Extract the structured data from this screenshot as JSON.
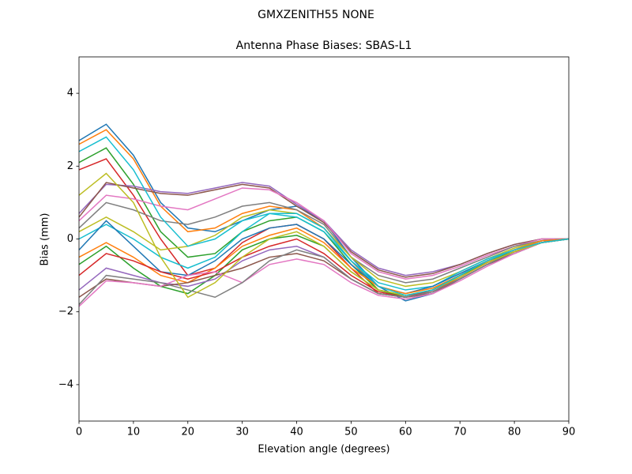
{
  "chart_data": {
    "type": "line",
    "suptitle": "GMXZENITH55     NONE",
    "title": "Antenna Phase Biases: SBAS-L1",
    "xlabel": "Elevation angle (degrees)",
    "ylabel": "Bias (mm)",
    "xlim": [
      0,
      90
    ],
    "ylim": [
      -5,
      5
    ],
    "xticks": [
      0,
      10,
      20,
      30,
      40,
      50,
      60,
      70,
      80,
      90
    ],
    "yticks": [
      {
        "value": -4,
        "label": "−4"
      },
      {
        "value": -2,
        "label": "−2"
      },
      0,
      2,
      4
    ],
    "x": [
      0,
      5,
      10,
      15,
      20,
      25,
      30,
      35,
      40,
      45,
      50,
      55,
      60,
      65,
      70,
      75,
      80,
      85,
      90
    ],
    "series": [
      {
        "color": "#1f77b4",
        "values": [
          2.7,
          3.15,
          2.3,
          1.0,
          0.3,
          0.2,
          0.5,
          0.8,
          0.9,
          0.5,
          -0.5,
          -1.3,
          -1.7,
          -1.5,
          -1.1,
          -0.7,
          -0.4,
          -0.1,
          0
        ]
      },
      {
        "color": "#ff7f0e",
        "values": [
          2.6,
          3.0,
          2.2,
          0.9,
          0.2,
          0.3,
          0.7,
          0.9,
          0.8,
          0.3,
          -0.6,
          -1.4,
          -1.6,
          -1.4,
          -1.0,
          -0.65,
          -0.35,
          -0.1,
          0
        ]
      },
      {
        "color": "#2ca02c",
        "values": [
          2.1,
          2.5,
          1.5,
          0.2,
          -0.5,
          -0.4,
          0.2,
          0.5,
          0.6,
          0.2,
          -0.7,
          -1.4,
          -1.6,
          -1.4,
          -1.0,
          -0.6,
          -0.35,
          -0.1,
          0
        ]
      },
      {
        "color": "#d62728",
        "values": [
          1.9,
          2.2,
          1.2,
          0.0,
          -1.0,
          -0.8,
          -0.1,
          0.3,
          0.4,
          0.0,
          -0.8,
          -1.5,
          -1.6,
          -1.4,
          -1.0,
          -0.6,
          -0.3,
          -0.05,
          0
        ]
      },
      {
        "color": "#9467bd",
        "values": [
          0.7,
          1.5,
          1.45,
          1.3,
          1.25,
          1.4,
          1.55,
          1.45,
          0.95,
          0.5,
          -0.3,
          -0.8,
          -1.0,
          -0.9,
          -0.7,
          -0.4,
          -0.15,
          0,
          0
        ]
      },
      {
        "color": "#8c564b",
        "values": [
          0.6,
          1.55,
          1.4,
          1.25,
          1.2,
          1.35,
          1.5,
          1.4,
          0.9,
          0.45,
          -0.35,
          -0.85,
          -1.05,
          -0.95,
          -0.7,
          -0.4,
          -0.15,
          0,
          0
        ]
      },
      {
        "color": "#e377c2",
        "values": [
          0.5,
          1.2,
          1.1,
          0.9,
          0.8,
          1.1,
          1.4,
          1.35,
          1.0,
          0.5,
          -0.4,
          -0.9,
          -1.1,
          -1.0,
          -0.75,
          -0.45,
          -0.2,
          0,
          0
        ]
      },
      {
        "color": "#7f7f7f",
        "values": [
          0.3,
          1.0,
          0.8,
          0.5,
          0.4,
          0.6,
          0.9,
          1.0,
          0.8,
          0.4,
          -0.5,
          -1.0,
          -1.2,
          -1.1,
          -0.8,
          -0.5,
          -0.2,
          -0.05,
          0
        ]
      },
      {
        "color": "#bcbd22",
        "values": [
          0.2,
          0.6,
          0.2,
          -0.3,
          -0.2,
          0.1,
          0.6,
          0.8,
          0.7,
          0.3,
          -0.5,
          -1.1,
          -1.3,
          -1.2,
          -0.9,
          -0.55,
          -0.25,
          -0.05,
          0
        ]
      },
      {
        "color": "#17becf",
        "values": [
          0.0,
          0.4,
          0.0,
          -0.5,
          -0.8,
          -0.5,
          0.2,
          0.7,
          0.6,
          0.2,
          -0.6,
          -1.2,
          -1.4,
          -1.3,
          -0.9,
          -0.55,
          -0.3,
          -0.05,
          0
        ]
      },
      {
        "color": "#1f77b4",
        "values": [
          -0.3,
          0.5,
          -0.2,
          -0.9,
          -1.0,
          -0.6,
          0.0,
          0.3,
          0.4,
          0.0,
          -0.7,
          -1.3,
          -1.5,
          -1.3,
          -0.95,
          -0.6,
          -0.3,
          -0.05,
          0
        ]
      },
      {
        "color": "#ff7f0e",
        "values": [
          -0.5,
          -0.1,
          -0.5,
          -1.0,
          -1.2,
          -0.8,
          -0.2,
          0.1,
          0.3,
          -0.1,
          -0.8,
          -1.3,
          -1.5,
          -1.35,
          -1.0,
          -0.6,
          -0.3,
          -0.05,
          0
        ]
      },
      {
        "color": "#2ca02c",
        "values": [
          -0.7,
          -0.2,
          -0.8,
          -1.3,
          -1.5,
          -1.0,
          -0.3,
          0.0,
          0.1,
          -0.2,
          -0.9,
          -1.4,
          -1.55,
          -1.4,
          -1.0,
          -0.65,
          -0.35,
          -0.1,
          0
        ]
      },
      {
        "color": "#d62728",
        "values": [
          -1.0,
          -0.4,
          -0.6,
          -0.9,
          -1.1,
          -0.9,
          -0.5,
          -0.2,
          0.0,
          -0.4,
          -1.0,
          -1.45,
          -1.6,
          -1.45,
          -1.05,
          -0.65,
          -0.35,
          -0.1,
          0
        ]
      },
      {
        "color": "#9467bd",
        "values": [
          -1.4,
          -0.8,
          -1.0,
          -1.2,
          -1.3,
          -1.1,
          -0.6,
          -0.3,
          -0.2,
          -0.5,
          -1.1,
          -1.5,
          -1.6,
          -1.45,
          -1.1,
          -0.7,
          -0.35,
          -0.1,
          0
        ]
      },
      {
        "color": "#8c564b",
        "values": [
          -1.6,
          -1.1,
          -1.2,
          -1.3,
          -1.2,
          -1.0,
          -0.8,
          -0.5,
          -0.4,
          -0.6,
          -1.1,
          -1.5,
          -1.6,
          -1.5,
          -1.1,
          -0.7,
          -0.4,
          -0.1,
          0
        ]
      },
      {
        "color": "#e377c2",
        "values": [
          -1.85,
          -1.15,
          -1.2,
          -1.3,
          -1.0,
          -0.9,
          -1.2,
          -0.7,
          -0.55,
          -0.7,
          -1.2,
          -1.55,
          -1.65,
          -1.5,
          -1.15,
          -0.75,
          -0.4,
          -0.1,
          0
        ]
      },
      {
        "color": "#7f7f7f",
        "values": [
          -1.8,
          -1.0,
          -1.1,
          -1.2,
          -1.4,
          -1.6,
          -1.2,
          -0.6,
          -0.3,
          -0.5,
          -1.1,
          -1.5,
          -1.6,
          -1.45,
          -1.1,
          -0.7,
          -0.35,
          -0.1,
          0
        ]
      },
      {
        "color": "#bcbd22",
        "values": [
          1.2,
          1.8,
          1.0,
          -0.5,
          -1.6,
          -1.2,
          -0.5,
          0.0,
          0.2,
          -0.2,
          -0.9,
          -1.4,
          -1.55,
          -1.4,
          -1.05,
          -0.65,
          -0.35,
          -0.1,
          0
        ]
      },
      {
        "color": "#17becf",
        "values": [
          2.4,
          2.8,
          1.9,
          0.6,
          -0.2,
          0.0,
          0.5,
          0.7,
          0.7,
          0.3,
          -0.6,
          -1.3,
          -1.55,
          -1.4,
          -1.0,
          -0.6,
          -0.3,
          -0.1,
          0
        ]
      }
    ]
  }
}
